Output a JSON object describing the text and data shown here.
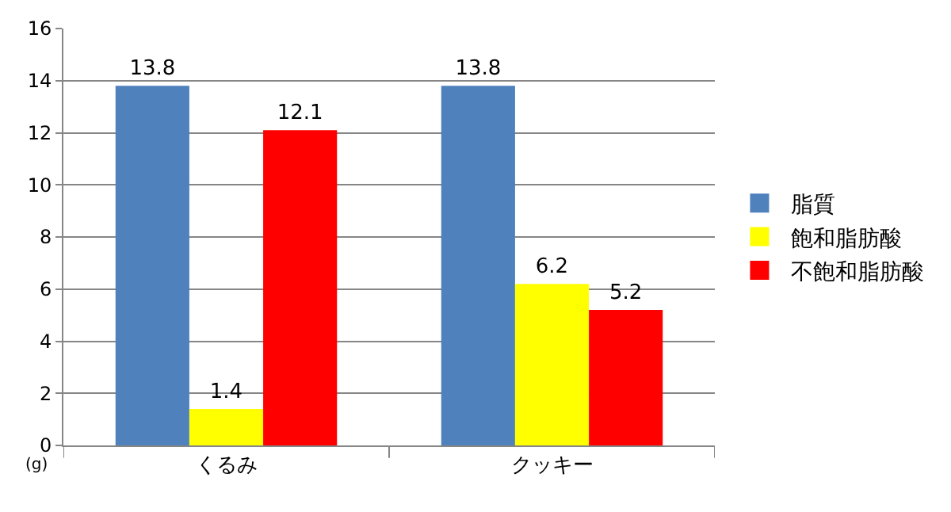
{
  "chart_data": {
    "type": "bar",
    "ylabel": "(g)",
    "categories": [
      "くるみ",
      "クッキー"
    ],
    "series": [
      {
        "name": "脂質",
        "color": "#4f81bd",
        "values": [
          13.8,
          13.8
        ]
      },
      {
        "name": "飽和脂肪酸",
        "color": "#ffff00",
        "values": [
          1.4,
          6.2
        ]
      },
      {
        "name": "不飽和脂肪酸",
        "color": "#ff0000",
        "values": [
          12.1,
          5.2
        ]
      }
    ],
    "ylim": [
      0,
      16
    ],
    "yticks": [
      0,
      2,
      4,
      6,
      8,
      10,
      12,
      14,
      16
    ],
    "grid": "y",
    "legend": "right",
    "data_labels": true
  }
}
